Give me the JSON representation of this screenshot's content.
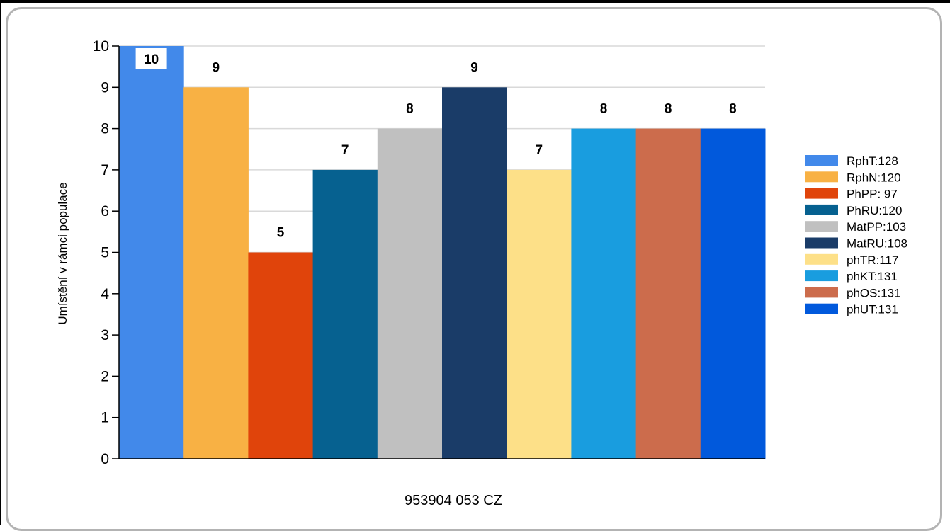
{
  "chart_data": {
    "type": "bar",
    "categories": [
      "RphT:128",
      "RphN:120",
      "PhPP: 97",
      "PhRU:120",
      "MatPP:103",
      "MatRU:108",
      "phTR:117",
      "phKT:131",
      "phOS:131",
      "phUT:131"
    ],
    "values": [
      10,
      9,
      5,
      7,
      8,
      9,
      7,
      8,
      8,
      8
    ],
    "colors": [
      "#4289ea",
      "#f8b144",
      "#e0440b",
      "#066190",
      "#c0c0c0",
      "#1a3c68",
      "#fde088",
      "#199ddf",
      "#cc6c4c",
      "#0159dc"
    ],
    "xlabel": "953904 053 CZ",
    "ylabel": "Umístění v rámci populace",
    "ylim": [
      0,
      10
    ],
    "yticks": [
      "0",
      "1",
      "2",
      "3",
      "4",
      "5",
      "6",
      "7",
      "8",
      "9",
      "10"
    ],
    "grid": true,
    "legend_position": "right"
  }
}
